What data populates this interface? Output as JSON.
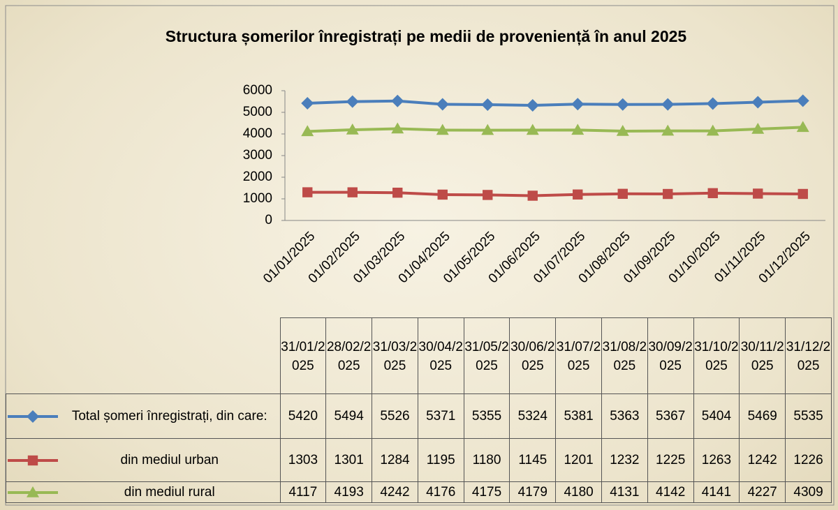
{
  "chart_data": {
    "type": "line",
    "title": "Structura șomerilor înregistrați pe medii de proveniență în anul 2025",
    "categories": [
      "01/01/2025",
      "01/02/2025",
      "01/03/2025",
      "01/04/2025",
      "01/05/2025",
      "01/06/2025",
      "01/07/2025",
      "01/08/2025",
      "01/09/2025",
      "01/10/2025",
      "01/11/2025",
      "01/12/2025"
    ],
    "table_columns": [
      "31/01/2025",
      "28/02/2025",
      "31/03/2025",
      "30/04/2025",
      "31/05/2025",
      "30/06/2025",
      "31/07/2025",
      "31/08/2025",
      "30/09/2025",
      "31/10/2025",
      "30/11/2025",
      "31/12/2025"
    ],
    "series": [
      {
        "name": "Total șomeri înregistrați, din care:",
        "color": "#4a7ebb",
        "marker": "diamond",
        "values": [
          5420,
          5494,
          5526,
          5371,
          5355,
          5324,
          5381,
          5363,
          5367,
          5404,
          5469,
          5535
        ]
      },
      {
        "name": "din mediul urban",
        "color": "#be4b48",
        "marker": "square",
        "values": [
          1303,
          1301,
          1284,
          1195,
          1180,
          1145,
          1201,
          1232,
          1225,
          1263,
          1242,
          1226
        ]
      },
      {
        "name": "din mediul rural",
        "color": "#98b954",
        "marker": "triangle",
        "values": [
          4117,
          4193,
          4242,
          4176,
          4175,
          4179,
          4180,
          4131,
          4142,
          4141,
          4227,
          4309
        ]
      }
    ],
    "ylim": [
      0,
      6000
    ],
    "yticks": [
      0,
      1000,
      2000,
      3000,
      4000,
      5000,
      6000
    ],
    "grid": false
  }
}
